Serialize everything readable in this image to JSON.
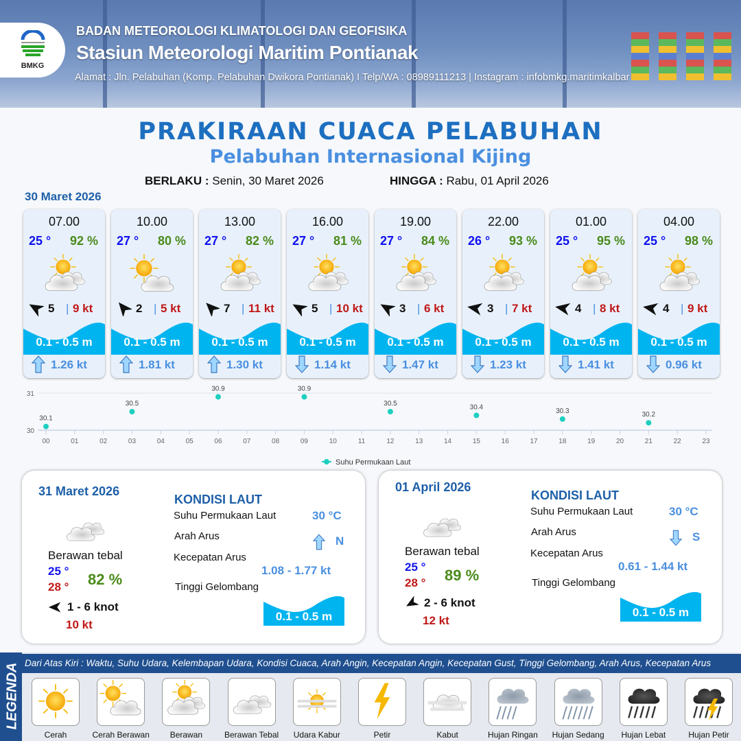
{
  "header": {
    "org": "BADAN METEOROLOGI KLIMATOLOGI DAN GEOFISIKA",
    "station": "Stasiun Meteorologi Maritim Pontianak",
    "address": "Alamat : Jln. Pelabuhan (Komp. Pelabuhan Dwikora Pontianak) I Telp/WA : 08989111213 | Instagram : infobmkg.maritimkalbar",
    "logo_text": "BMKG"
  },
  "title": "PRAKIRAAN CUACA PELABUHAN",
  "subtitle": "Pelabuhan Internasional Kijing",
  "validity": {
    "from_label": "BERLAKU :",
    "from": "Senin, 30 Maret 2026",
    "to_label": "HINGGA :",
    "to": "Rabu, 01 April 2026"
  },
  "day0": "30 Maret 2026",
  "colors": {
    "temp": "#1010ee",
    "humidity": "#4a8a1a",
    "gust": "#c01818",
    "wave": "#00b4f0",
    "current": "#4a8fe0",
    "title": "#1d6fc0"
  },
  "forecast": [
    {
      "time": "07.00",
      "temp": "25 °",
      "hum": "92 %",
      "icon": "berawan",
      "wind_deg": -60,
      "wind": "5",
      "gust": "9 kt",
      "wave": "0.1 - 0.5 m",
      "cur_dir": "up",
      "cur": "1.26 kt"
    },
    {
      "time": "10.00",
      "temp": "27 °",
      "hum": "80 %",
      "icon": "cerah-berawan",
      "wind_deg": -40,
      "wind": "2",
      "gust": "5 kt",
      "wave": "0.1 - 0.5 m",
      "cur_dir": "up",
      "cur": "1.81 kt"
    },
    {
      "time": "13.00",
      "temp": "27 °",
      "hum": "82 %",
      "icon": "berawan",
      "wind_deg": -45,
      "wind": "7",
      "gust": "11 kt",
      "wave": "0.1 - 0.5 m",
      "cur_dir": "up",
      "cur": "1.30 kt"
    },
    {
      "time": "16.00",
      "temp": "27 °",
      "hum": "81 %",
      "icon": "berawan",
      "wind_deg": -60,
      "wind": "5",
      "gust": "10 kt",
      "wave": "0.1 - 0.5 m",
      "cur_dir": "down",
      "cur": "1.14 kt"
    },
    {
      "time": "19.00",
      "temp": "27 °",
      "hum": "84 %",
      "icon": "berawan",
      "wind_deg": -60,
      "wind": "3",
      "gust": "6 kt",
      "wave": "0.1 - 0.5 m",
      "cur_dir": "down",
      "cur": "1.47 kt"
    },
    {
      "time": "22.00",
      "temp": "26 °",
      "hum": "93 %",
      "icon": "berawan",
      "wind_deg": -80,
      "wind": "3",
      "gust": "7 kt",
      "wave": "0.1 - 0.5 m",
      "cur_dir": "down",
      "cur": "1.23 kt"
    },
    {
      "time": "01.00",
      "temp": "25 °",
      "hum": "95 %",
      "icon": "berawan",
      "wind_deg": -80,
      "wind": "4",
      "gust": "8 kt",
      "wave": "0.1 - 0.5 m",
      "cur_dir": "down",
      "cur": "1.41 kt"
    },
    {
      "time": "04.00",
      "temp": "25 °",
      "hum": "98 %",
      "icon": "berawan",
      "wind_deg": -80,
      "wind": "4",
      "gust": "9 kt",
      "wave": "0.1 - 0.5 m",
      "cur_dir": "down",
      "cur": "0.96 kt"
    }
  ],
  "chart_data": {
    "type": "scatter",
    "categories": [
      "00",
      "01",
      "02",
      "03",
      "04",
      "05",
      "06",
      "07",
      "08",
      "09",
      "10",
      "11",
      "12",
      "13",
      "14",
      "15",
      "16",
      "17",
      "18",
      "19",
      "20",
      "21",
      "22",
      "23"
    ],
    "series": [
      {
        "name": "Suhu Permukaan Laut",
        "x": [
          "00",
          "03",
          "06",
          "09",
          "12",
          "15",
          "18",
          "21"
        ],
        "values": [
          30.1,
          30.5,
          30.9,
          30.9,
          30.5,
          30.4,
          30.3,
          30.2
        ],
        "labels": [
          "30.1",
          "30.5",
          "30.9",
          "30.9",
          "30.5",
          "30.4",
          "30.3",
          "30.2"
        ],
        "color": "#1ecfc0"
      }
    ],
    "yticks": [
      "30",
      "31"
    ],
    "ylim": [
      30,
      31
    ],
    "grid": true,
    "legend": "bottom"
  },
  "days": [
    {
      "date": "31 Maret 2026",
      "cond": "Berawan tebal",
      "tmin": "25 °",
      "tmax": "28 °",
      "hum": "82 %",
      "wind": "1  - 6 knot",
      "gust": "10 kt",
      "wind_deg": -90,
      "kondisi": "KONDISI LAUT",
      "sst_label": "Suhu Permukaan Laut",
      "sst": "30 °C",
      "dir_label": "Arah Arus",
      "dir": "N",
      "cur_dir": "up",
      "spd_label": "Kecepatan Arus",
      "spd": "1.08 - 1.77 kt",
      "wave_label": "Tinggi Gelombang",
      "wave": "0.1 - 0.5 m"
    },
    {
      "date": "01 April 2026",
      "cond": "Berawan tebal",
      "tmin": "25 °",
      "tmax": "28 °",
      "hum": "89 %",
      "wind": "2  - 6 knot",
      "gust": "12 kt",
      "wind_deg": -120,
      "kondisi": "KONDISI LAUT",
      "sst_label": "Suhu Permukaan Laut",
      "sst": "30 °C",
      "dir_label": "Arah Arus",
      "dir": "S",
      "cur_dir": "down",
      "spd_label": "Kecepatan Arus",
      "spd": "0.61 - 1.44 kt",
      "wave_label": "Tinggi Gelombang",
      "wave": "0.1 - 0.5 m"
    }
  ],
  "legend": {
    "title": "LEGENDA",
    "description": "Dari Atas Kiri : Waktu, Suhu Udara, Kelembapan Udara, Kondisi Cuaca, Arah Angin, Kecepatan Angin, Kecepatan Gust, Tinggi Gelombang, Arah Arus, Kecepatan Arus",
    "items": [
      {
        "label": "Cerah",
        "icon": "cerah"
      },
      {
        "label": "Cerah Berawan",
        "icon": "cerah-berawan"
      },
      {
        "label": "Berawan",
        "icon": "berawan"
      },
      {
        "label": "Berawan Tebal",
        "icon": "berawan-tebal"
      },
      {
        "label": "Udara Kabur",
        "icon": "udara-kabur"
      },
      {
        "label": "Petir",
        "icon": "petir"
      },
      {
        "label": "Kabut",
        "icon": "kabut"
      },
      {
        "label": "Hujan Ringan",
        "icon": "hujan-ringan"
      },
      {
        "label": "Hujan Sedang",
        "icon": "hujan-sedang"
      },
      {
        "label": "Hujan Lebat",
        "icon": "hujan-lebat"
      },
      {
        "label": "Hujan Petir",
        "icon": "hujan-petir"
      }
    ]
  }
}
